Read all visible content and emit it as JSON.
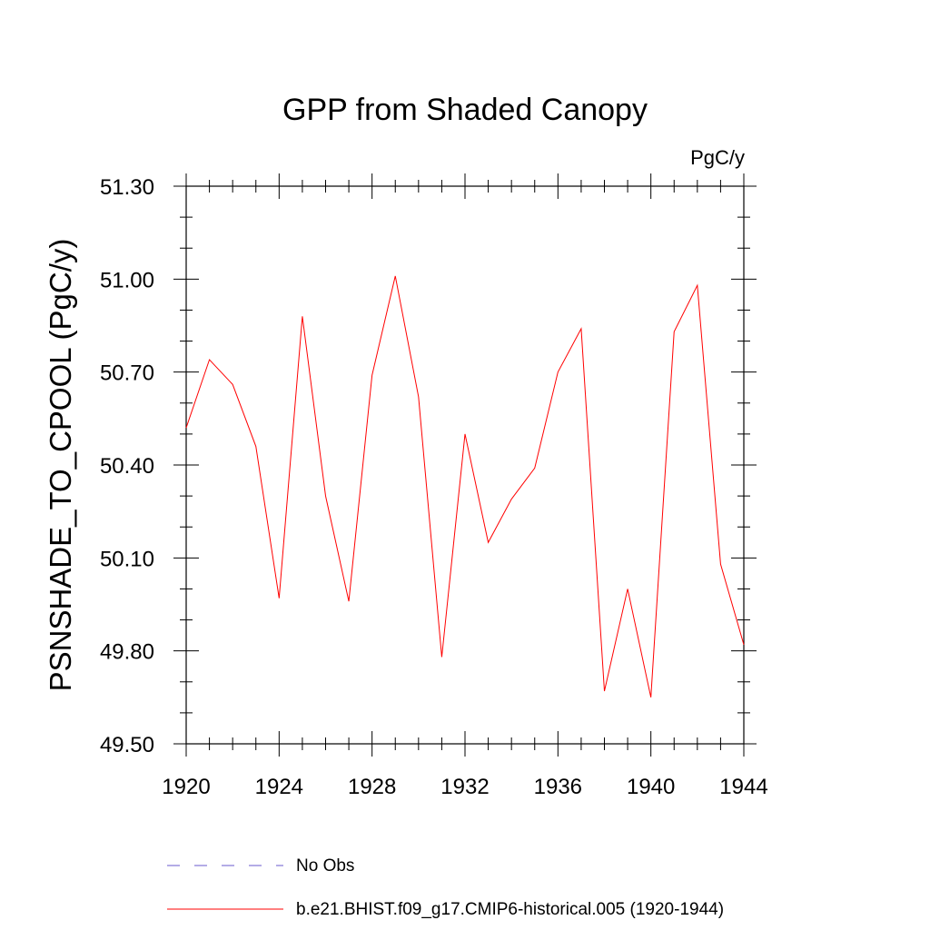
{
  "chart_data": {
    "type": "line",
    "title": "GPP from Shaded Canopy",
    "units_label": "PgC/y",
    "xlabel": "",
    "ylabel": "PSNSHADE_TO_CPOOL  (PgC/y)",
    "xlim": [
      1920,
      1944
    ],
    "ylim": [
      49.5,
      51.3
    ],
    "x_ticks": [
      "1920",
      "1924",
      "1928",
      "1932",
      "1936",
      "1940",
      "1944"
    ],
    "y_ticks": [
      "49.50",
      "49.80",
      "50.10",
      "50.40",
      "50.70",
      "51.00",
      "51.30"
    ],
    "x_tick_values": [
      1920,
      1924,
      1928,
      1932,
      1936,
      1940,
      1944
    ],
    "y_tick_values": [
      49.5,
      49.8,
      50.1,
      50.4,
      50.7,
      51.0,
      51.3
    ],
    "x_minor_step": 1,
    "y_minor_step": 0.1,
    "grid": false,
    "series": [
      {
        "name": "b.e21.BHIST.f09_g17.CMIP6-historical.005 (1920-1944)",
        "color": "#ff0000",
        "style": "solid",
        "x": [
          1920,
          1921,
          1922,
          1923,
          1924,
          1925,
          1926,
          1927,
          1928,
          1929,
          1930,
          1931,
          1932,
          1933,
          1934,
          1935,
          1936,
          1937,
          1938,
          1939,
          1940,
          1941,
          1942,
          1943,
          1944
        ],
        "values": [
          50.52,
          50.74,
          50.66,
          50.46,
          49.97,
          50.88,
          50.3,
          49.96,
          50.69,
          51.01,
          50.62,
          49.78,
          50.5,
          50.15,
          50.29,
          50.39,
          50.7,
          50.84,
          49.67,
          50.0,
          49.65,
          50.83,
          50.98,
          50.08,
          49.82
        ]
      }
    ],
    "legend": [
      {
        "label": "No Obs",
        "color": "#6a5acd",
        "style": "dashed"
      },
      {
        "label": "b.e21.BHIST.f09_g17.CMIP6-historical.005 (1920-1944)",
        "color": "#ff0000",
        "style": "solid"
      }
    ],
    "legend_position": "bottom"
  }
}
